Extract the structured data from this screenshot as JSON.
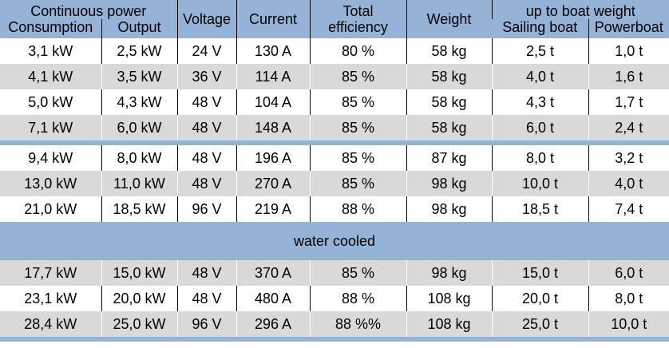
{
  "header": {
    "continuous_power": "Continuous power",
    "consumption": "Consumption",
    "output": "Output",
    "voltage": "Voltage",
    "current": "Current",
    "total_efficiency_1": "Total",
    "total_efficiency_2": "efficiency",
    "weight": "Weight",
    "up_to_boat_weight": "up to boat weight",
    "sailing_boat": "Sailing boat",
    "powerboat": "Powerboat"
  },
  "group1": [
    [
      "3,1 kW",
      "2,5 kW",
      "24 V",
      "130 A",
      "80 %",
      "58 kg",
      "2,5 t",
      "1,0 t"
    ],
    [
      "4,1 kW",
      "3,5 kW",
      "36 V",
      "114 A",
      "85 %",
      "58 kg",
      "4,0 t",
      "1,6 t"
    ],
    [
      "5,0 kW",
      "4,3 kW",
      "48 V",
      "104 A",
      "85 %",
      "58 kg",
      "4,3 t",
      "1,7 t"
    ],
    [
      "7,1 kW",
      "6,0 kW",
      "48 V",
      "148 A",
      "85 %",
      "58 kg",
      "6,0 t",
      "2,4 t"
    ]
  ],
  "group2": [
    [
      "9,4 kW",
      "8,0 kW",
      "48 V",
      "196 A",
      "85 %",
      "87 kg",
      "8,0 t",
      "3,2 t"
    ],
    [
      "13,0 kW",
      "11,0 kW",
      "48 V",
      "270 A",
      "85 %",
      "98 kg",
      "10,0 t",
      "4,0 t"
    ],
    [
      "21,0 kW",
      "18,5 kW",
      "96 V",
      "219 A",
      "88 %",
      "98 kg",
      "18,5 t",
      "7,4 t"
    ]
  ],
  "section_label": "water cooled",
  "group3": [
    [
      "17,7 kW",
      "15,0 kW",
      "48 V",
      "370 A",
      "85 %",
      "98 kg",
      "15,0 t",
      "6,0 t"
    ],
    [
      "23,1 kW",
      "20,0 kW",
      "48 V",
      "480 A",
      "88 %",
      "108 kg",
      "20,0 t",
      "8,0 t"
    ],
    [
      "28,4 kW",
      "25,0 kW",
      "96 V",
      "296 A",
      "88 %%",
      "108 kg",
      "25,0 t",
      "10,0 t"
    ]
  ]
}
